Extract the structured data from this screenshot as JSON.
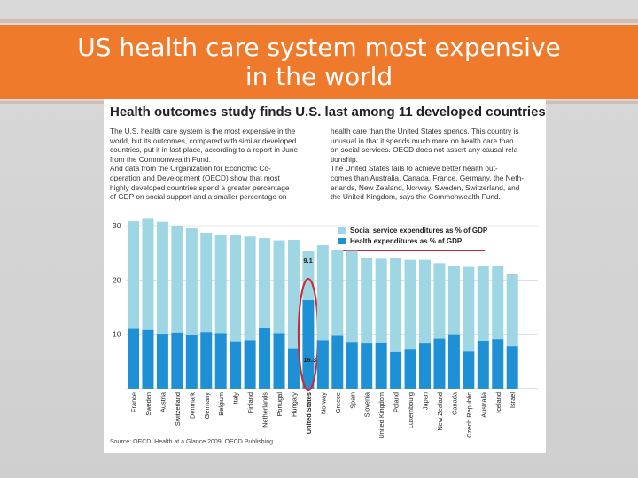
{
  "slide": {
    "title_line1": "US health care system most expensive",
    "title_line2": "in the world",
    "banner_color": "#f07a2c"
  },
  "figure": {
    "headline": "Health outcomes study finds U.S. last among 11 developed countries",
    "col1": [
      "The U.S. health care system is the most expensive in the",
      "world, but its outcomes, compared with similar developed",
      "countries, put it in last place, according to a report in June",
      "from the Commonwealth Fund.",
      "And data from the Organization for Economic Co-",
      "operation and Development (OECD) show that most",
      "highly developed countries spend a greater percentage",
      "of GDP on social support and a smaller percentage on"
    ],
    "col2": [
      "health care than the United States spends. This country is",
      "unusual in that it spends much more on health care than",
      "on social services. OECD does not assert any causal rela-",
      "tionship.",
      "The United States fails to achieve better health out-",
      "comes than Australia, Canada, France, Germany, the Neth-",
      "erlands, New Zealand, Norway, Sweden, Switzerland, and",
      "the United Kingdom, says the Commonwealth Fund."
    ],
    "source": "Source: OECD, Health at a Glance 2009: OECD Publishing",
    "highlight_color": "#d0262e"
  },
  "chart_data": {
    "type": "bar",
    "stacked": true,
    "categories": [
      "France",
      "Sweden",
      "Austria",
      "Switzerland",
      "Denmark",
      "Germany",
      "Belgium",
      "Italy",
      "Finland",
      "Netherlands",
      "Portugal",
      "Hungary",
      "United States",
      "Norway",
      "Greece",
      "Spain",
      "Slovenia",
      "United Kingdom",
      "Poland",
      "Luxembourg",
      "Japan",
      "New Zealand",
      "Canada",
      "Czech Republic",
      "Australia",
      "Iceland",
      "Israel"
    ],
    "series": [
      {
        "name": "Health expenditures as % of GDP",
        "color": "#1e90d6",
        "values": [
          11.0,
          10.8,
          10.1,
          10.3,
          9.9,
          10.4,
          10.2,
          8.7,
          8.9,
          11.1,
          10.2,
          7.4,
          16.3,
          8.9,
          9.7,
          8.6,
          8.3,
          8.5,
          6.7,
          7.3,
          8.3,
          9.2,
          10.0,
          6.8,
          8.8,
          9.1,
          7.8
        ]
      },
      {
        "name": "Social service expenditures as % of GDP",
        "color": "#9fd6e4",
        "values": [
          19.8,
          20.6,
          20.6,
          19.7,
          19.6,
          18.3,
          18.0,
          19.6,
          19.1,
          16.6,
          17.1,
          20.0,
          9.1,
          17.5,
          15.9,
          16.9,
          15.8,
          15.4,
          17.4,
          16.4,
          15.4,
          13.9,
          12.5,
          15.6,
          13.8,
          13.4,
          13.3
        ]
      }
    ],
    "annotations": {
      "United States_social": "9.1",
      "United States_health": "16.3"
    },
    "yticks": [
      "10",
      "20",
      "30"
    ],
    "ylim": [
      0,
      30
    ],
    "highlight_category": "United States",
    "legend_placement": "top-right"
  }
}
